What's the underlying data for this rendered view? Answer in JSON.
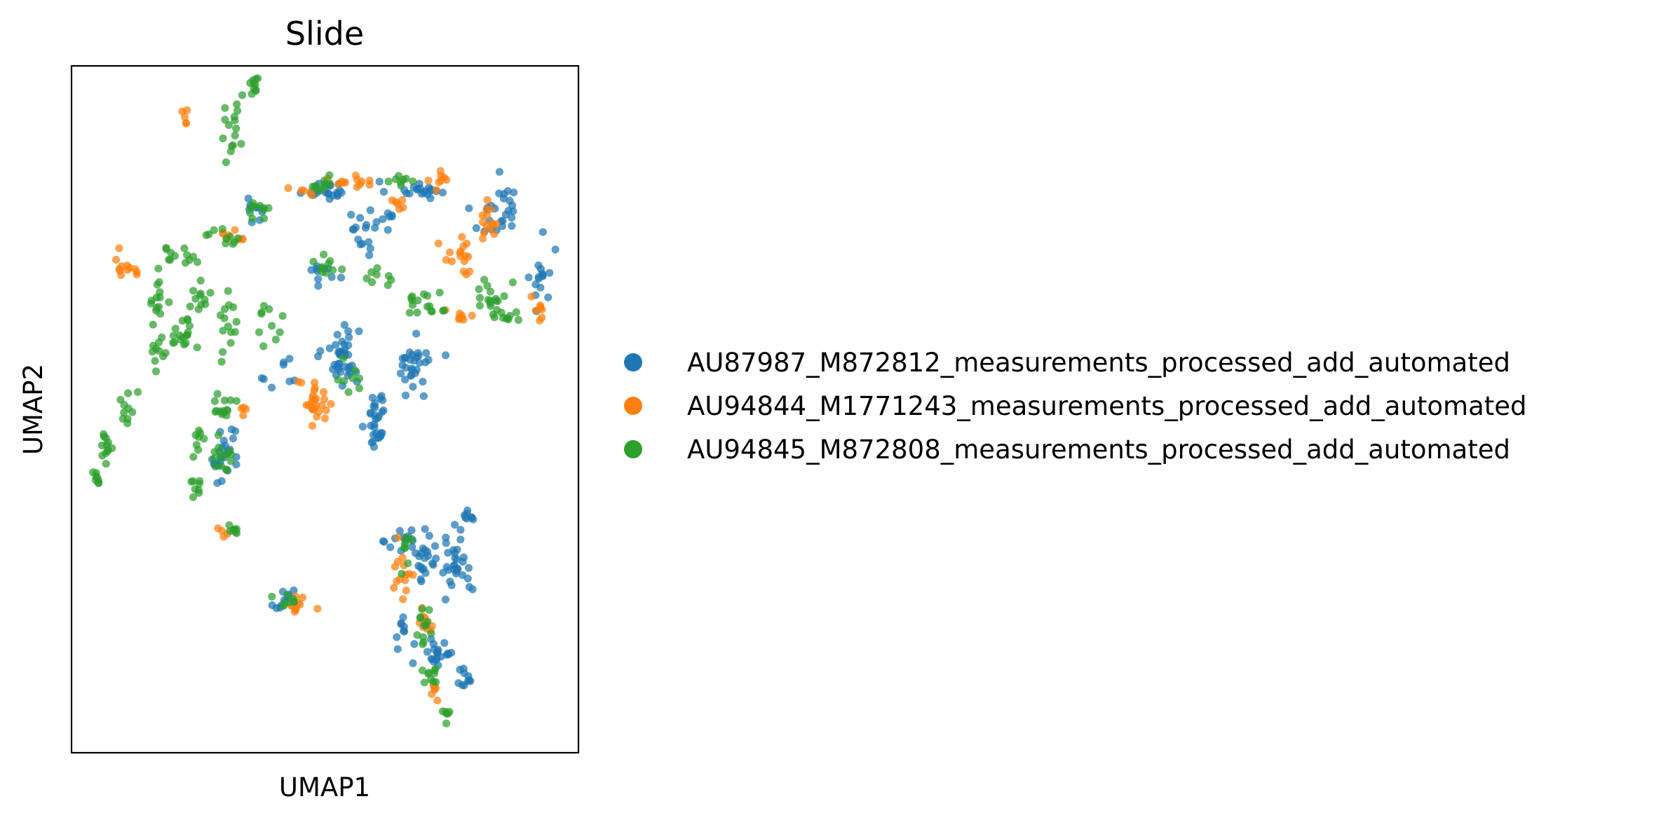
{
  "chart_data": {
    "type": "scatter",
    "title": "Slide",
    "xlabel": "UMAP1",
    "ylabel": "UMAP2",
    "xlim": [
      0,
      10
    ],
    "ylim": [
      0,
      13.8
    ],
    "ticks": false,
    "grid": false,
    "legend_position": "right",
    "series": [
      {
        "name": "AU87987_M872812_measurements_processed_add_automated",
        "color": "#1f77b4",
        "clusters": [
          [
            5.0,
            11.3,
            0.45,
            0.15,
            20
          ],
          [
            6.8,
            11.3,
            0.5,
            0.15,
            20
          ],
          [
            8.3,
            10.8,
            0.35,
            0.35,
            18
          ],
          [
            9.3,
            9.4,
            0.2,
            0.7,
            16
          ],
          [
            5.7,
            10.5,
            0.25,
            0.6,
            14
          ],
          [
            3.7,
            10.9,
            0.3,
            0.3,
            8
          ],
          [
            5.3,
            8.0,
            0.3,
            0.5,
            40
          ],
          [
            6.8,
            7.8,
            0.3,
            0.4,
            30
          ],
          [
            6.0,
            6.7,
            0.15,
            0.6,
            30
          ],
          [
            5.0,
            9.7,
            0.3,
            0.25,
            10
          ],
          [
            2.95,
            5.8,
            0.2,
            0.4,
            16
          ],
          [
            3.2,
            6.1,
            0.15,
            0.5,
            8
          ],
          [
            4.2,
            7.5,
            0.3,
            0.4,
            8
          ],
          [
            7.6,
            3.9,
            0.25,
            0.6,
            30
          ],
          [
            7.0,
            3.8,
            0.25,
            0.3,
            20
          ],
          [
            6.6,
            4.3,
            0.3,
            0.3,
            15
          ],
          [
            7.2,
            2.0,
            0.3,
            0.4,
            22
          ],
          [
            7.8,
            1.5,
            0.15,
            0.3,
            10
          ],
          [
            4.2,
            3.1,
            0.25,
            0.2,
            10
          ],
          [
            7.8,
            4.7,
            0.15,
            0.15,
            8
          ],
          [
            6.5,
            2.4,
            0.15,
            0.3,
            8
          ],
          [
            8.5,
            11.2,
            0.2,
            0.3,
            8
          ],
          [
            6.2,
            10.8,
            0.25,
            0.3,
            8
          ]
        ]
      },
      {
        "name": "AU94844_M1771243_measurements_processed_add_automated",
        "color": "#ff7f0e",
        "clusters": [
          [
            1.1,
            9.8,
            0.25,
            0.2,
            12
          ],
          [
            3.2,
            10.4,
            0.3,
            0.15,
            8
          ],
          [
            8.3,
            10.7,
            0.2,
            0.35,
            14
          ],
          [
            7.7,
            9.9,
            0.3,
            0.35,
            16
          ],
          [
            4.8,
            7.0,
            0.3,
            0.4,
            26
          ],
          [
            7.7,
            8.8,
            0.2,
            0.15,
            8
          ],
          [
            9.2,
            8.9,
            0.15,
            0.2,
            8
          ],
          [
            5.6,
            11.5,
            0.45,
            0.12,
            12
          ],
          [
            4.7,
            11.3,
            0.3,
            0.1,
            5
          ],
          [
            3.0,
            4.4,
            0.1,
            0.1,
            4
          ],
          [
            2.2,
            12.7,
            0.1,
            0.2,
            5
          ],
          [
            4.5,
            3.0,
            0.2,
            0.2,
            10
          ],
          [
            6.5,
            3.6,
            0.15,
            0.4,
            14
          ],
          [
            7.0,
            2.6,
            0.15,
            0.3,
            10
          ],
          [
            7.1,
            1.2,
            0.2,
            0.2,
            6
          ],
          [
            7.3,
            11.5,
            0.15,
            0.2,
            8
          ],
          [
            6.4,
            11.0,
            0.2,
            0.15,
            6
          ],
          [
            3.4,
            6.9,
            0.1,
            0.1,
            4
          ]
        ]
      },
      {
        "name": "AU94845_M872808_measurements_processed_add_automated",
        "color": "#2ca02c",
        "clusters": [
          [
            0.5,
            5.5,
            0.08,
            0.15,
            8
          ],
          [
            0.7,
            6.2,
            0.15,
            0.2,
            12
          ],
          [
            1.1,
            7.0,
            0.12,
            0.4,
            10
          ],
          [
            1.7,
            8.0,
            0.15,
            0.3,
            10
          ],
          [
            1.7,
            9.2,
            0.2,
            0.5,
            14
          ],
          [
            2.1,
            10.0,
            0.3,
            0.15,
            12
          ],
          [
            2.9,
            10.4,
            0.3,
            0.15,
            10
          ],
          [
            3.7,
            10.9,
            0.35,
            0.15,
            10
          ],
          [
            3.2,
            12.3,
            0.2,
            0.6,
            16
          ],
          [
            3.6,
            13.4,
            0.08,
            0.2,
            10
          ],
          [
            2.2,
            8.5,
            0.2,
            0.5,
            18
          ],
          [
            2.6,
            9.2,
            0.2,
            0.3,
            10
          ],
          [
            3.1,
            8.6,
            0.15,
            0.5,
            14
          ],
          [
            3.9,
            8.6,
            0.2,
            0.4,
            10
          ],
          [
            3.0,
            7.0,
            0.15,
            0.4,
            14
          ],
          [
            3.0,
            6.0,
            0.15,
            0.4,
            14
          ],
          [
            2.45,
            5.3,
            0.15,
            0.15,
            8
          ],
          [
            3.2,
            4.5,
            0.12,
            0.15,
            8
          ],
          [
            7.0,
            9.0,
            0.5,
            0.2,
            16
          ],
          [
            8.3,
            9.2,
            0.3,
            0.4,
            18
          ],
          [
            8.6,
            8.8,
            0.3,
            0.1,
            8
          ],
          [
            5.0,
            9.7,
            0.3,
            0.2,
            10
          ],
          [
            6.1,
            9.6,
            0.2,
            0.2,
            8
          ],
          [
            5.4,
            7.5,
            0.3,
            0.3,
            8
          ],
          [
            6.6,
            4.1,
            0.15,
            0.3,
            8
          ],
          [
            7.0,
            2.6,
            0.2,
            0.4,
            12
          ],
          [
            7.1,
            1.5,
            0.2,
            0.2,
            10
          ],
          [
            7.4,
            0.8,
            0.1,
            0.15,
            6
          ],
          [
            4.2,
            3.0,
            0.2,
            0.2,
            8
          ],
          [
            5.0,
            11.4,
            0.4,
            0.12,
            10
          ],
          [
            6.5,
            11.5,
            0.3,
            0.1,
            8
          ],
          [
            2.5,
            6.3,
            0.15,
            0.3,
            8
          ]
        ]
      }
    ]
  }
}
